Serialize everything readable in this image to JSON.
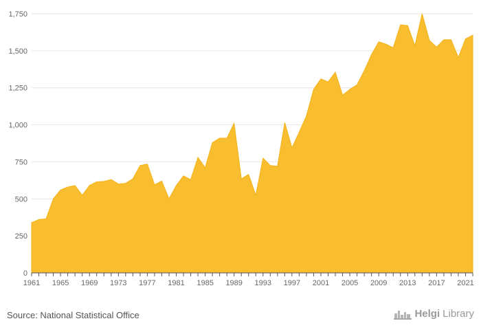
{
  "footer": {
    "source": "Source: National Statistical Office",
    "brand_prefix": "Helgi",
    "brand_suffix": "Library"
  },
  "colors": {
    "fill": "#f9bd30",
    "stroke": "#f2b319",
    "grid": "#e6e6e6",
    "axis": "#555555",
    "text": "#666666"
  },
  "chart_data": {
    "type": "area",
    "title": "",
    "xlabel": "",
    "ylabel": "",
    "ylim": [
      0,
      1750
    ],
    "xlim": [
      1961,
      2022
    ],
    "yticks": [
      0,
      250,
      500,
      750,
      1000,
      1250,
      1500,
      1750
    ],
    "ytick_labels": [
      "0",
      "250",
      "500",
      "750",
      "1,000",
      "1,250",
      "1,500",
      "1,750"
    ],
    "xtick_labels": [
      "1961",
      "1965",
      "1969",
      "1973",
      "1977",
      "1981",
      "1985",
      "1989",
      "1993",
      "1997",
      "2001",
      "2005",
      "2009",
      "2013",
      "2017",
      "2021"
    ],
    "grid": true,
    "legend": "none",
    "x": [
      1961,
      1962,
      1963,
      1964,
      1965,
      1966,
      1967,
      1968,
      1969,
      1970,
      1971,
      1972,
      1973,
      1974,
      1975,
      1976,
      1977,
      1978,
      1979,
      1980,
      1981,
      1982,
      1983,
      1984,
      1985,
      1986,
      1987,
      1988,
      1989,
      1990,
      1991,
      1992,
      1993,
      1994,
      1995,
      1996,
      1997,
      1998,
      1999,
      2000,
      2001,
      2002,
      2003,
      2004,
      2005,
      2006,
      2007,
      2008,
      2009,
      2010,
      2011,
      2012,
      2013,
      2014,
      2015,
      2016,
      2017,
      2018,
      2019,
      2020,
      2021,
      2022
    ],
    "values": [
      340,
      360,
      365,
      500,
      560,
      580,
      590,
      525,
      590,
      615,
      618,
      630,
      600,
      605,
      635,
      725,
      735,
      595,
      620,
      500,
      590,
      655,
      630,
      780,
      710,
      880,
      910,
      910,
      1010,
      635,
      665,
      525,
      775,
      725,
      720,
      1015,
      845,
      950,
      1060,
      1240,
      1310,
      1290,
      1355,
      1200,
      1240,
      1270,
      1365,
      1475,
      1560,
      1545,
      1520,
      1675,
      1670,
      1535,
      1750,
      1570,
      1525,
      1575,
      1575,
      1455,
      1580,
      1605
    ]
  }
}
